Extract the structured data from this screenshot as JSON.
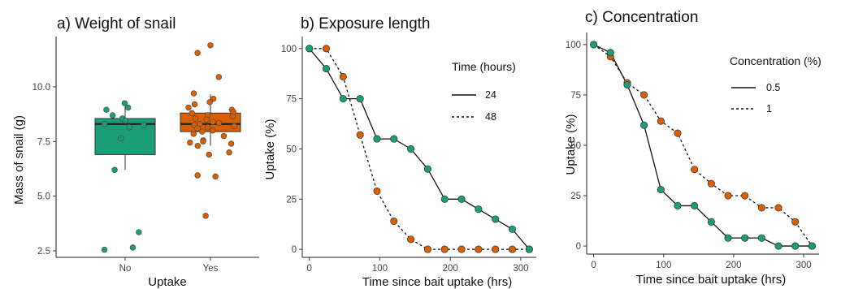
{
  "colors": {
    "teal": "#1b9e77",
    "orange": "#d95f02",
    "outline": "#333333",
    "line": "#111111"
  },
  "chart_data": [
    {
      "type": "box",
      "title": "a) Weight of snail",
      "xlabel": "Uptake",
      "ylabel": "Mass of snail (g)",
      "categories": [
        "No",
        "Yes"
      ],
      "ylim": [
        2.2,
        12.3
      ],
      "yticks": [
        2.5,
        5.0,
        7.5,
        10.0
      ],
      "ytick_labels": [
        "2.5",
        "5.0",
        "7.5",
        "10.0"
      ],
      "grid": false,
      "boxes": [
        {
          "category": "No",
          "q1": 6.9,
          "median": 8.3,
          "q3": 8.55,
          "whisker_low": 6.2,
          "whisker_high": 9.1
        },
        {
          "category": "Yes",
          "q1": 7.95,
          "median": 8.3,
          "q3": 8.8,
          "whisker_low": 7.3,
          "whisker_high": 9.65
        }
      ],
      "points": [
        {
          "category": "No",
          "values": [
            9.25,
            9.05,
            8.95,
            8.7,
            8.55,
            8.45,
            8.3,
            8.25,
            8.15,
            7.65,
            6.2,
            3.35,
            2.65,
            2.55
          ]
        },
        {
          "category": "Yes",
          "values": [
            11.9,
            11.55,
            10.45,
            9.7,
            9.45,
            9.3,
            9.2,
            9.05,
            8.95,
            8.85,
            8.8,
            8.7,
            8.65,
            8.55,
            8.5,
            8.4,
            8.35,
            8.3,
            8.25,
            8.2,
            8.15,
            8.1,
            8.0,
            7.95,
            7.85,
            7.75,
            7.55,
            7.5,
            7.45,
            7.4,
            7.3,
            7.0,
            6.9,
            5.95,
            5.9,
            4.1
          ]
        }
      ]
    },
    {
      "type": "line",
      "title": "b) Exposure length",
      "xlabel": "Time since bait uptake (hrs)",
      "ylabel": "Uptake (%)",
      "xlim": [
        -10,
        322
      ],
      "ylim": [
        -4,
        106
      ],
      "xticks": [
        0,
        100,
        200,
        300
      ],
      "yticks": [
        0,
        25,
        50,
        75,
        100
      ],
      "legend": {
        "title": "Time (hours)",
        "position": "right"
      },
      "grid": false,
      "series": [
        {
          "name": "24",
          "dash": "solid",
          "color_key": "teal",
          "x": [
            0,
            24,
            48,
            72,
            96,
            120,
            144,
            168,
            192,
            216,
            240,
            264,
            288,
            312
          ],
          "y": [
            100,
            90,
            75,
            75,
            55,
            55,
            50,
            40,
            25,
            25,
            20,
            15,
            10,
            0
          ]
        },
        {
          "name": "48",
          "dash": "dashed",
          "color_key": "orange",
          "x": [
            0,
            24,
            48,
            72,
            96,
            120,
            144,
            168,
            192,
            216,
            240,
            264,
            288,
            312
          ],
          "y": [
            100,
            100,
            86,
            57,
            29,
            14,
            5,
            0,
            0,
            0,
            0,
            0,
            0,
            0
          ]
        }
      ]
    },
    {
      "type": "line",
      "title": "c) Concentration",
      "xlabel": "Time since bait uptake (hrs)",
      "ylabel": "Uptake (%)",
      "xlim": [
        -10,
        322
      ],
      "ylim": [
        -4,
        106
      ],
      "xticks": [
        0,
        100,
        200,
        300
      ],
      "yticks": [
        0,
        25,
        50,
        75,
        100
      ],
      "legend": {
        "title": "Concentration (%)",
        "position": "right"
      },
      "grid": false,
      "series": [
        {
          "name": "0.5",
          "dash": "solid",
          "color_key": "teal",
          "x": [
            0,
            24,
            48,
            72,
            96,
            120,
            144,
            168,
            192,
            216,
            240,
            264,
            288,
            312
          ],
          "y": [
            100,
            96,
            80,
            60,
            28,
            20,
            20,
            12,
            4,
            4,
            4,
            0,
            0,
            0
          ]
        },
        {
          "name": "1",
          "dash": "dashed",
          "color_key": "orange",
          "x": [
            0,
            24,
            48,
            72,
            96,
            120,
            144,
            168,
            192,
            216,
            240,
            264,
            288,
            312
          ],
          "y": [
            100,
            94,
            81,
            75,
            62,
            56,
            38,
            31,
            25,
            25,
            19,
            19,
            12,
            0
          ]
        }
      ]
    }
  ]
}
